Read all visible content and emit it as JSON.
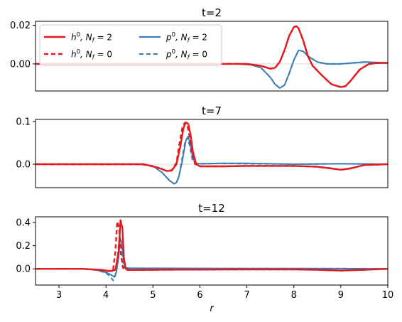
{
  "chart_data": {
    "type": "line",
    "xlabel": "r",
    "xlim": [
      2.5,
      10
    ],
    "xticks": [
      "3",
      "4",
      "5",
      "6",
      "7",
      "8",
      "9",
      "10"
    ],
    "colors": {
      "h": "#e41a1c",
      "p": "#377eb8"
    },
    "legend": {
      "placement": "upper-left of first panel",
      "entries": [
        {
          "series": "h0_Nf2",
          "prefix": "h",
          "sup": "0",
          "mid": ",  N",
          "sub": "f",
          "suffix": " = 2"
        },
        {
          "series": "h0_Nf0",
          "prefix": "h",
          "sup": "0",
          "mid": ",  N",
          "sub": "f",
          "suffix": " = 0"
        },
        {
          "series": "p0_Nf2",
          "prefix": "p",
          "sup": "0",
          "mid": ",  N",
          "sub": "f",
          "suffix": " = 2"
        },
        {
          "series": "p0_Nf0",
          "prefix": "p",
          "sup": "0",
          "mid": ",  N",
          "sub": "f",
          "suffix": " = 0"
        }
      ]
    },
    "panels": [
      {
        "title": "t=2",
        "ylim": [
          -0.014,
          0.022
        ],
        "yticks": [
          0.0,
          0.02
        ],
        "ytick_labels": [
          "0.00",
          "0.02"
        ],
        "series": [
          {
            "key": "p0_Nf2",
            "dashed": false,
            "color": "p",
            "x": [
              2.5,
              6.8,
              7.1,
              7.3,
              7.5,
              7.6,
              7.7,
              7.8,
              7.9,
              8.0,
              8.1,
              8.2,
              8.3,
              8.5,
              8.7,
              9.0,
              9.5,
              10.0
            ],
            "y": [
              0,
              0,
              -0.0005,
              -0.002,
              -0.007,
              -0.0105,
              -0.0125,
              -0.011,
              -0.005,
              0.002,
              0.007,
              0.0065,
              0.004,
              0.001,
              0.0,
              0.0,
              0.001,
              0.0005
            ]
          },
          {
            "key": "p0_Nf0",
            "dashed": true,
            "color": "p",
            "x": [
              2.5,
              6.8,
              7.1,
              7.3,
              7.5,
              7.6,
              7.7,
              7.8,
              7.9,
              8.0,
              8.1,
              8.2,
              8.3,
              8.5,
              8.7,
              9.0,
              9.5,
              10.0
            ],
            "y": [
              0,
              0,
              -0.0005,
              -0.002,
              -0.007,
              -0.0105,
              -0.0125,
              -0.011,
              -0.005,
              0.002,
              0.007,
              0.0065,
              0.004,
              0.001,
              0.0,
              0.0,
              0.001,
              0.0005
            ]
          },
          {
            "key": "h0_Nf2",
            "dashed": false,
            "color": "h",
            "x": [
              2.5,
              7.0,
              7.3,
              7.5,
              7.6,
              7.7,
              7.8,
              7.9,
              8.0,
              8.05,
              8.1,
              8.2,
              8.3,
              8.4,
              8.6,
              8.8,
              9.0,
              9.1,
              9.2,
              9.4,
              9.6,
              9.8,
              10.0
            ],
            "y": [
              0,
              0,
              -0.001,
              -0.0025,
              -0.002,
              0.001,
              0.007,
              0.0145,
              0.019,
              0.0195,
              0.0185,
              0.012,
              0.004,
              -0.001,
              -0.006,
              -0.0105,
              -0.012,
              -0.0115,
              -0.009,
              -0.003,
              0.0,
              0.0005,
              0.0005
            ]
          },
          {
            "key": "h0_Nf0",
            "dashed": true,
            "color": "h",
            "x": [
              2.5,
              7.0,
              7.3,
              7.5,
              7.6,
              7.7,
              7.8,
              7.9,
              8.0,
              8.05,
              8.1,
              8.2,
              8.3,
              8.4,
              8.6,
              8.8,
              9.0,
              9.1,
              9.2,
              9.4,
              9.6,
              9.8,
              10.0
            ],
            "y": [
              0,
              0,
              -0.001,
              -0.0025,
              -0.002,
              0.001,
              0.007,
              0.0145,
              0.019,
              0.0195,
              0.0185,
              0.012,
              0.004,
              -0.001,
              -0.006,
              -0.0105,
              -0.012,
              -0.0115,
              -0.009,
              -0.003,
              0.0,
              0.0005,
              0.0005
            ]
          }
        ]
      },
      {
        "title": "t=7",
        "ylim": [
          -0.055,
          0.105
        ],
        "yticks": [
          0.0,
          0.1
        ],
        "ytick_labels": [
          "0.0",
          "0.1"
        ],
        "series": [
          {
            "key": "p0_Nf2",
            "dashed": false,
            "color": "p",
            "x": [
              2.5,
              4.7,
              5.0,
              5.2,
              5.35,
              5.45,
              5.5,
              5.55,
              5.62,
              5.7,
              5.75,
              5.8,
              5.86,
              5.92,
              6.0,
              6.5,
              7.0,
              7.5,
              8.0,
              9.0,
              10.0
            ],
            "y": [
              0,
              0,
              -0.004,
              -0.02,
              -0.038,
              -0.046,
              -0.043,
              -0.03,
              0.005,
              0.055,
              0.065,
              0.045,
              0.012,
              0.002,
              0.001,
              0.002,
              0.002,
              0.001,
              0.0,
              0.001,
              0.0
            ]
          },
          {
            "key": "p0_Nf0",
            "dashed": true,
            "color": "p",
            "x": [
              2.5,
              4.7,
              5.0,
              5.2,
              5.35,
              5.45,
              5.5,
              5.55,
              5.6,
              5.68,
              5.73,
              5.78,
              5.84,
              5.9,
              6.0,
              6.5,
              7.0,
              8.0,
              9.0,
              10.0
            ],
            "y": [
              0,
              0,
              -0.004,
              -0.02,
              -0.038,
              -0.046,
              -0.043,
              -0.03,
              0.0,
              0.05,
              0.062,
              0.045,
              0.01,
              0.002,
              0.001,
              0.002,
              0.001,
              0.0,
              0.001,
              0.0
            ]
          },
          {
            "key": "h0_Nf2",
            "dashed": false,
            "color": "h",
            "x": [
              2.5,
              4.8,
              5.1,
              5.3,
              5.4,
              5.5,
              5.58,
              5.65,
              5.7,
              5.75,
              5.8,
              5.85,
              5.92,
              6.0,
              6.5,
              7.0,
              8.0,
              8.5,
              8.8,
              9.0,
              9.2,
              9.5,
              10.0
            ],
            "y": [
              0,
              0,
              -0.008,
              -0.016,
              -0.015,
              0.0,
              0.04,
              0.085,
              0.098,
              0.095,
              0.07,
              0.03,
              0.0,
              -0.005,
              -0.005,
              -0.004,
              -0.004,
              -0.006,
              -0.01,
              -0.013,
              -0.01,
              -0.002,
              0.0
            ]
          },
          {
            "key": "h0_Nf0",
            "dashed": true,
            "color": "h",
            "x": [
              2.5,
              4.8,
              5.1,
              5.3,
              5.4,
              5.5,
              5.56,
              5.63,
              5.68,
              5.73,
              5.78,
              5.83,
              5.9,
              6.0,
              6.5,
              7.0,
              8.0,
              8.5,
              8.8,
              9.0,
              9.2,
              9.5,
              10.0
            ],
            "y": [
              0,
              0,
              -0.008,
              -0.016,
              -0.014,
              0.003,
              0.045,
              0.088,
              0.097,
              0.092,
              0.065,
              0.025,
              0.0,
              -0.005,
              -0.005,
              -0.004,
              -0.004,
              -0.006,
              -0.01,
              -0.013,
              -0.01,
              -0.002,
              0.0
            ]
          }
        ]
      },
      {
        "title": "t=12",
        "ylim": [
          -0.14,
          0.45
        ],
        "yticks": [
          0.0,
          0.2,
          0.4
        ],
        "ytick_labels": [
          "0.0",
          "0.2",
          "0.4"
        ],
        "series": [
          {
            "key": "p0_Nf2",
            "dashed": false,
            "color": "p",
            "x": [
              2.5,
              3.5,
              3.8,
              4.0,
              4.1,
              4.18,
              4.22,
              4.27,
              4.3,
              4.34,
              4.38,
              4.42,
              4.5,
              5.0,
              6.0,
              7.0,
              8.0,
              9.0,
              10.0
            ],
            "y": [
              0,
              0,
              -0.01,
              -0.03,
              -0.05,
              -0.07,
              -0.03,
              0.1,
              0.27,
              0.22,
              0.05,
              0.01,
              0.005,
              0.005,
              0.004,
              0.003,
              0.003,
              0.002,
              0.0
            ]
          },
          {
            "key": "p0_Nf0",
            "dashed": true,
            "color": "p",
            "x": [
              2.5,
              3.5,
              3.8,
              4.0,
              4.1,
              4.15,
              4.2,
              4.25,
              4.28,
              4.32,
              4.36,
              4.4,
              4.5,
              5.0,
              6.0,
              7.0,
              8.0,
              9.0,
              10.0
            ],
            "y": [
              0,
              0,
              -0.01,
              -0.035,
              -0.07,
              -0.1,
              -0.06,
              0.12,
              0.25,
              0.2,
              0.04,
              0.01,
              0.005,
              0.004,
              0.003,
              0.003,
              0.002,
              0.002,
              0.0
            ]
          },
          {
            "key": "h0_Nf2",
            "dashed": false,
            "color": "h",
            "x": [
              2.5,
              3.5,
              3.9,
              4.1,
              4.2,
              4.27,
              4.31,
              4.35,
              4.38,
              4.42,
              4.5,
              5.0,
              6.0,
              7.0,
              8.0,
              8.5,
              9.0,
              9.5,
              10.0
            ],
            "y": [
              0,
              0,
              -0.01,
              -0.02,
              -0.01,
              0.15,
              0.42,
              0.35,
              0.1,
              0.0,
              -0.01,
              -0.008,
              -0.006,
              -0.005,
              -0.005,
              -0.008,
              -0.015,
              -0.008,
              0.0
            ]
          },
          {
            "key": "h0_Nf0",
            "dashed": true,
            "color": "h",
            "x": [
              2.5,
              3.5,
              3.9,
              4.05,
              4.15,
              4.2,
              4.24,
              4.28,
              4.32,
              4.36,
              4.45,
              5.0,
              6.0,
              7.0,
              8.0,
              8.5,
              9.0,
              9.5,
              10.0
            ],
            "y": [
              0,
              0,
              -0.01,
              -0.02,
              -0.01,
              0.15,
              0.41,
              0.35,
              0.12,
              0.01,
              -0.01,
              -0.008,
              -0.006,
              -0.005,
              -0.005,
              -0.008,
              -0.015,
              -0.008,
              0.0
            ]
          }
        ]
      }
    ]
  }
}
